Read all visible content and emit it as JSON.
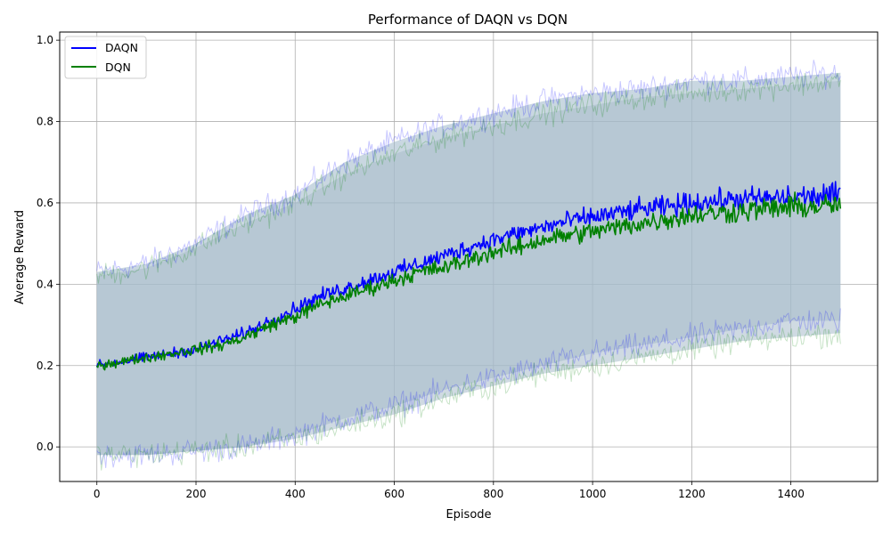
{
  "chart_data": {
    "type": "line",
    "title": "Performance of DAQN vs DQN",
    "xlabel": "Episode",
    "ylabel": "Average Reward",
    "xlim": [
      -75,
      1575
    ],
    "ylim": [
      -0.085,
      1.02
    ],
    "xticks": [
      0,
      200,
      400,
      600,
      800,
      1000,
      1200,
      1400
    ],
    "yticks": [
      0.0,
      0.2,
      0.4,
      0.6,
      0.8,
      1.0
    ],
    "ytick_labels": [
      "0.0",
      "0.2",
      "0.4",
      "0.6",
      "0.8",
      "1.0"
    ],
    "grid": true,
    "legend_position": "top-left",
    "band_fill_color": "#a3b9c9",
    "series": [
      {
        "name": "DAQN",
        "color": "#0000ff",
        "mean": {
          "x": [
            0,
            50,
            100,
            150,
            200,
            250,
            300,
            350,
            400,
            450,
            500,
            550,
            600,
            650,
            700,
            750,
            800,
            850,
            900,
            950,
            1000,
            1050,
            1100,
            1150,
            1200,
            1250,
            1300,
            1350,
            1400,
            1450,
            1500
          ],
          "y": [
            0.2,
            0.21,
            0.22,
            0.23,
            0.24,
            0.26,
            0.28,
            0.31,
            0.34,
            0.37,
            0.39,
            0.41,
            0.43,
            0.45,
            0.47,
            0.49,
            0.51,
            0.525,
            0.54,
            0.555,
            0.565,
            0.575,
            0.585,
            0.59,
            0.6,
            0.605,
            0.61,
            0.61,
            0.615,
            0.615,
            0.62
          ]
        },
        "upper": {
          "x": [
            0,
            100,
            200,
            300,
            400,
            500,
            600,
            700,
            800,
            900,
            1000,
            1100,
            1200,
            1300,
            1400,
            1500
          ],
          "y": [
            0.43,
            0.45,
            0.5,
            0.57,
            0.62,
            0.7,
            0.75,
            0.79,
            0.82,
            0.85,
            0.87,
            0.88,
            0.9,
            0.9,
            0.91,
            0.92
          ]
        },
        "lower": {
          "x": [
            0,
            100,
            200,
            300,
            400,
            500,
            600,
            700,
            800,
            900,
            1000,
            1100,
            1200,
            1300,
            1400,
            1500
          ],
          "y": [
            -0.02,
            -0.02,
            -0.01,
            0.0,
            0.03,
            0.07,
            0.1,
            0.14,
            0.17,
            0.2,
            0.23,
            0.25,
            0.27,
            0.29,
            0.31,
            0.31
          ]
        }
      },
      {
        "name": "DQN",
        "color": "#008000",
        "mean": {
          "x": [
            0,
            50,
            100,
            150,
            200,
            250,
            300,
            350,
            400,
            450,
            500,
            550,
            600,
            650,
            700,
            750,
            800,
            850,
            900,
            950,
            1000,
            1050,
            1100,
            1150,
            1200,
            1250,
            1300,
            1350,
            1400,
            1450,
            1500
          ],
          "y": [
            0.2,
            0.21,
            0.22,
            0.23,
            0.24,
            0.25,
            0.27,
            0.3,
            0.32,
            0.35,
            0.37,
            0.39,
            0.41,
            0.43,
            0.44,
            0.46,
            0.48,
            0.49,
            0.51,
            0.52,
            0.53,
            0.54,
            0.55,
            0.56,
            0.57,
            0.575,
            0.58,
            0.585,
            0.59,
            0.59,
            0.595
          ]
        },
        "upper": {
          "x": [
            0,
            100,
            200,
            300,
            400,
            500,
            600,
            700,
            800,
            900,
            1000,
            1100,
            1200,
            1300,
            1400,
            1500
          ],
          "y": [
            0.42,
            0.44,
            0.49,
            0.55,
            0.6,
            0.67,
            0.72,
            0.76,
            0.79,
            0.82,
            0.84,
            0.86,
            0.87,
            0.88,
            0.89,
            0.9
          ]
        },
        "lower": {
          "x": [
            0,
            100,
            200,
            300,
            400,
            500,
            600,
            700,
            800,
            900,
            1000,
            1100,
            1200,
            1300,
            1400,
            1500
          ],
          "y": [
            -0.02,
            -0.02,
            -0.01,
            0.0,
            0.02,
            0.05,
            0.08,
            0.12,
            0.15,
            0.18,
            0.2,
            0.22,
            0.24,
            0.26,
            0.27,
            0.28
          ]
        }
      }
    ]
  }
}
